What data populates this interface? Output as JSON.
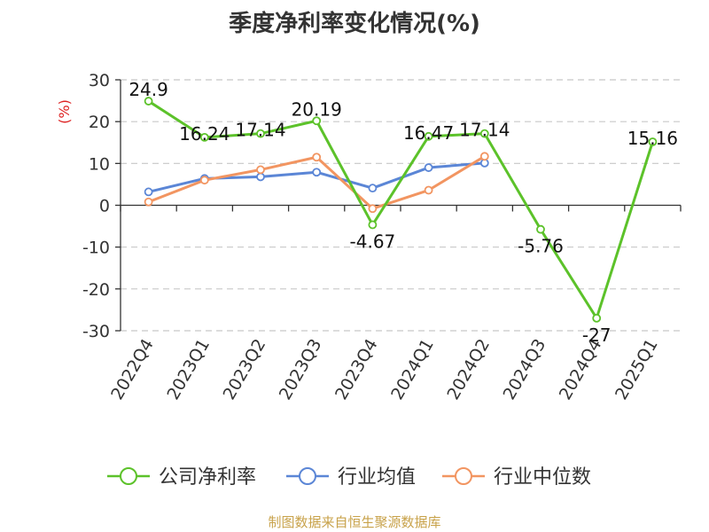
{
  "chart_data": {
    "type": "line",
    "title": "季度净利率变化情况(%)",
    "ylabel": "(%)",
    "xlabel": "",
    "categories": [
      "2022Q4",
      "2023Q1",
      "2023Q2",
      "2023Q3",
      "2023Q4",
      "2024Q1",
      "2024Q2",
      "2024Q3",
      "2024Q4",
      "2025Q1"
    ],
    "ylim": [
      -30,
      30
    ],
    "yticks": [
      30,
      20,
      10,
      0,
      -10,
      -20,
      -30
    ],
    "grid": true,
    "legend_position": "bottom",
    "series": [
      {
        "name": "公司净利率",
        "color": "#5cc22a",
        "values": [
          24.9,
          16.24,
          17.14,
          20.19,
          -4.67,
          16.47,
          17.14,
          -5.76,
          -27,
          15.16
        ],
        "labels": [
          "24.9",
          "16.24",
          "17.14",
          "20.19",
          "-4.67",
          "16.47",
          "17.14",
          "-5.76",
          "-27",
          "15.16"
        ]
      },
      {
        "name": "行业均值",
        "color": "#5b86d6",
        "values": [
          3.2,
          6.4,
          6.8,
          7.9,
          4.1,
          9.0,
          10.1,
          null,
          null,
          null
        ]
      },
      {
        "name": "行业中位数",
        "color": "#f29561",
        "values": [
          0.8,
          6.0,
          8.5,
          11.5,
          -0.8,
          3.6,
          11.7,
          null,
          null,
          null
        ]
      }
    ]
  },
  "footer": {
    "source": "制图数据来自恒生聚源数据库"
  }
}
